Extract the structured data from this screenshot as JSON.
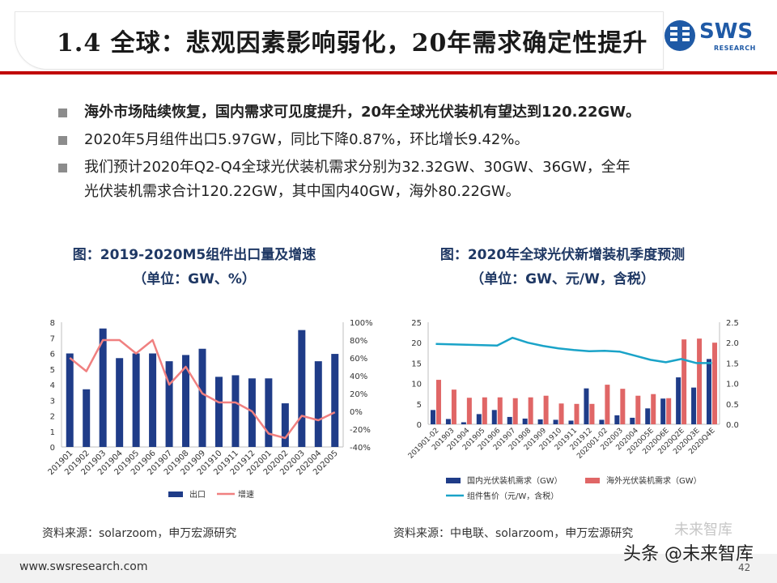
{
  "header": {
    "title": "1.4 全球：悲观因素影响弱化，20年需求确定性提升",
    "logo_text": "SWS",
    "logo_sub": "RESEARCH"
  },
  "bullets": [
    {
      "text": "海外市场陆续恢复，国内需求可见度提升，20年全球光伏装机有望达到120.22GW。",
      "bold": true
    },
    {
      "text": "2020年5月组件出口5.97GW，同比下降0.87%，环比增长9.42%。",
      "bold": false
    },
    {
      "text": "我们预计2020年Q2-Q4全球光伏装机需求分别为32.32GW、30GW、36GW，全年",
      "bold": false
    },
    {
      "text": "光伏装机需求合计120.22GW，其中国内40GW，海外80.22GW。",
      "bold": false
    }
  ],
  "figures": [
    {
      "title": "图：2019-2020M5组件出口量及增速",
      "unit": "（单位：GW、%）",
      "source": "资料来源：solarzoom，申万宏源研究"
    },
    {
      "title": "图：2020年全球光伏新增装机季度预测",
      "unit": "（单位：GW、元/W，含税）",
      "source": "资料来源：中电联、solarzoom，申万宏源研究"
    }
  ],
  "chart_data": [
    {
      "type": "bar",
      "categories": [
        "201901",
        "201902",
        "201903",
        "201904",
        "201905",
        "201906",
        "201907",
        "201908",
        "201909",
        "201910",
        "201911",
        "201912",
        "202001",
        "202002",
        "202003",
        "202004",
        "202005"
      ],
      "series": [
        {
          "name": "出口",
          "type": "bar",
          "axis": "left",
          "color": "#1f3c88",
          "values": [
            6.0,
            3.7,
            7.6,
            5.7,
            6.0,
            6.0,
            5.5,
            5.9,
            6.3,
            4.5,
            4.6,
            4.4,
            4.4,
            2.8,
            7.5,
            5.5,
            5.97
          ]
        },
        {
          "name": "增速",
          "type": "line",
          "axis": "right",
          "color": "#f08080",
          "values": [
            60,
            45,
            80,
            80,
            65,
            80,
            30,
            50,
            20,
            10,
            10,
            0,
            -25,
            -30,
            -5,
            -10,
            -1
          ]
        }
      ],
      "y_left": {
        "min": 0,
        "max": 8,
        "ticks": [
          "0",
          "1",
          "2",
          "3",
          "4",
          "5",
          "6",
          "7",
          "8"
        ]
      },
      "y_right": {
        "min": -40,
        "max": 100,
        "ticks": [
          "-40%",
          "-20%",
          "0%",
          "20%",
          "40%",
          "60%",
          "80%",
          "100%"
        ]
      },
      "legend": "bottom"
    },
    {
      "type": "bar",
      "categories": [
        "201901-02",
        "201903",
        "201904",
        "201905",
        "201906",
        "201907",
        "201908",
        "201909",
        "201910",
        "201911",
        "201912",
        "202001-02",
        "202003",
        "202004",
        "2020O5E",
        "2020O6E",
        "2020Q2E",
        "2020Q3E",
        "2020Q4E"
      ],
      "series": [
        {
          "name": "国内光伏装机需求（GW）",
          "type": "bar",
          "axis": "left",
          "color": "#1f3c88",
          "values": [
            3.5,
            1.3,
            0.5,
            2.5,
            3.5,
            1.8,
            1.4,
            1.2,
            1.1,
            0.9,
            8.8,
            1.1,
            2.2,
            1.6,
            3.9,
            6.3,
            11.5,
            9.0,
            16.0
          ]
        },
        {
          "name": "海外光伏装机需求（GW）",
          "type": "bar",
          "axis": "left",
          "color": "#e06666",
          "values": [
            10.9,
            8.5,
            6.5,
            6.6,
            6.6,
            6.4,
            6.6,
            7.0,
            5.1,
            5.0,
            5.0,
            9.7,
            8.7,
            7.0,
            7.4,
            6.4,
            20.8,
            21.0,
            20.0
          ]
        },
        {
          "name": "组件售价（元/W，含税）",
          "type": "line",
          "axis": "right",
          "color": "#1aa3c8",
          "values": [
            1.97,
            1.96,
            1.95,
            1.94,
            1.93,
            2.12,
            2.0,
            1.92,
            1.86,
            1.82,
            1.79,
            1.8,
            1.78,
            1.68,
            1.58,
            1.52,
            1.6,
            1.5,
            1.5
          ]
        }
      ],
      "y_left": {
        "min": 0,
        "max": 25,
        "ticks": [
          "0",
          "5",
          "10",
          "15",
          "20",
          "25"
        ]
      },
      "y_right": {
        "min": 0,
        "max": 2.5,
        "ticks": [
          "0.0",
          "0.5",
          "1.0",
          "1.5",
          "2.0",
          "2.5"
        ]
      },
      "legend": "bottom"
    }
  ],
  "footer": {
    "url": "www.swsresearch.com",
    "page": "42",
    "watermark": "头条 @未来智库",
    "watermark_top": "未来智库"
  }
}
